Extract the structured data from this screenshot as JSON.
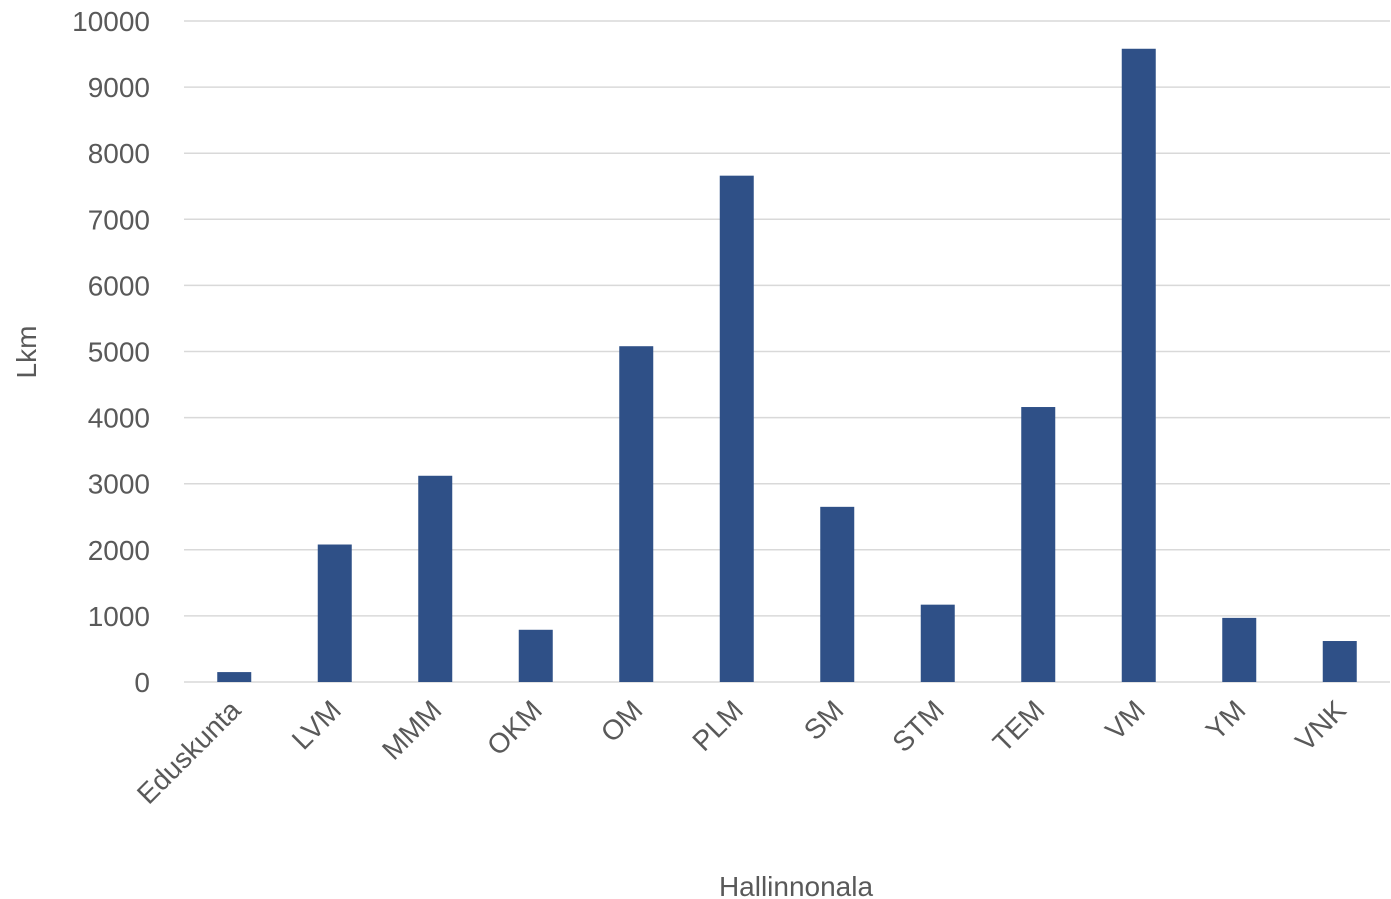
{
  "chart_data": {
    "type": "bar",
    "title": "",
    "xlabel": "Hallinnonala",
    "ylabel": "Lkm",
    "categories": [
      "Eduskunta",
      "LVM",
      "MMM",
      "OKM",
      "OM",
      "PLM",
      "SM",
      "STM",
      "TEM",
      "VM",
      "YM",
      "VNK"
    ],
    "series": [
      {
        "values": [
          150,
          2080,
          3120,
          790,
          5080,
          7660,
          2650,
          1170,
          4160,
          9580,
          970,
          620
        ],
        "color": "#2f5087"
      }
    ],
    "ylim": [
      0,
      10000
    ],
    "yticks": [
      0,
      1000,
      2000,
      3000,
      4000,
      5000,
      6000,
      7000,
      8000,
      9000,
      10000
    ],
    "grid": true,
    "legend": "none"
  }
}
